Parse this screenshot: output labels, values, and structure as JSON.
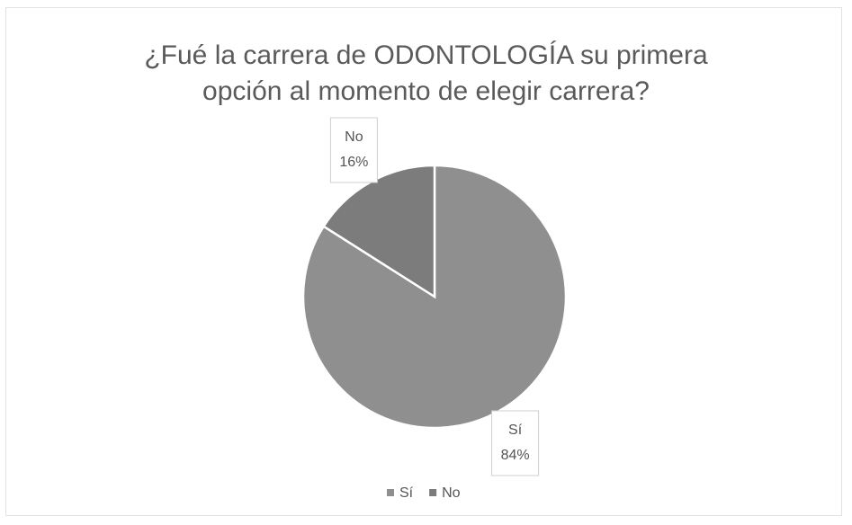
{
  "chart_data": {
    "type": "pie",
    "title": "¿Fué la carrera de ODONTOLOGÍA su primera opción al momento de elegir carrera?",
    "categories": [
      "Sí",
      "No"
    ],
    "values": [
      84,
      16
    ],
    "value_labels": [
      "84%",
      "16%"
    ],
    "colors": [
      "#8f8f8f",
      "#7c7c7c"
    ],
    "legend": "bottom"
  }
}
